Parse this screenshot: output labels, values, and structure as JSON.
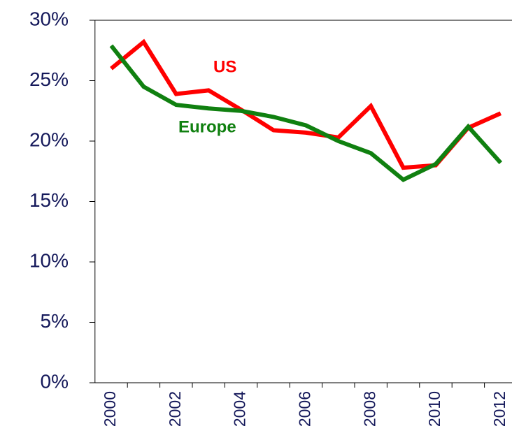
{
  "chart_data": {
    "type": "line",
    "categories": [
      "2000",
      null,
      "2002",
      null,
      "2004",
      null,
      "2006",
      null,
      "2008",
      null,
      "2010",
      null,
      "2012"
    ],
    "series": [
      {
        "name": "US",
        "color": "#ff0000",
        "values": [
          26.0,
          28.2,
          23.9,
          24.2,
          22.6,
          20.9,
          20.7,
          20.3,
          22.9,
          17.8,
          18.0,
          21.1,
          22.3
        ]
      },
      {
        "name": "Europe",
        "color": "#108010",
        "values": [
          27.9,
          24.5,
          23.0,
          22.7,
          22.5,
          22.0,
          21.3,
          20.0,
          19.0,
          16.8,
          18.1,
          21.2,
          18.2
        ]
      }
    ],
    "ylim": [
      0,
      30
    ],
    "yticks": [
      {
        "value": 0,
        "label": "0%"
      },
      {
        "value": 5,
        "label": "5%"
      },
      {
        "value": 10,
        "label": "10%"
      },
      {
        "value": 15,
        "label": "15%"
      },
      {
        "value": 20,
        "label": "20%"
      },
      {
        "value": 25,
        "label": "25%"
      },
      {
        "value": 30,
        "label": "30%"
      }
    ],
    "grid": false
  }
}
